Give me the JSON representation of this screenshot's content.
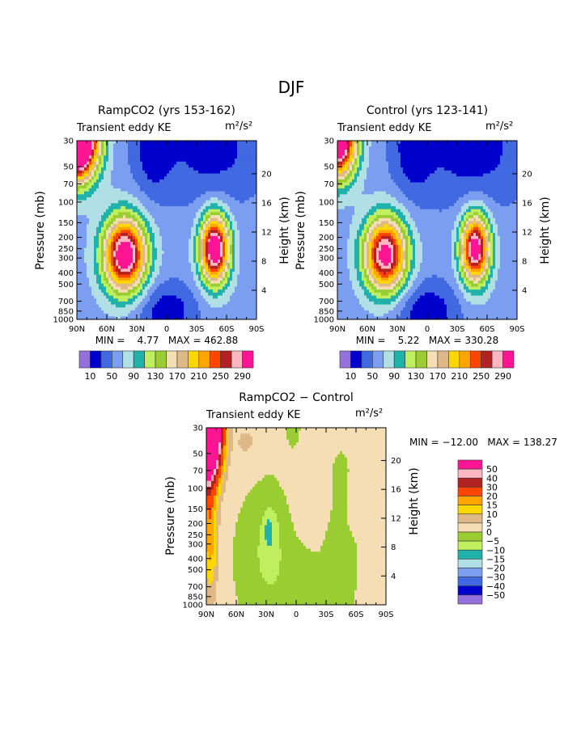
{
  "figure_title": "DJF",
  "colors": {
    "absolute": [
      "#9370DB",
      "#0000CD",
      "#4169E1",
      "#7B9EF0",
      "#B0E0E6",
      "#20B2AA",
      "#BFEF5F",
      "#9ACD32",
      "#F5DEB3",
      "#DEB887",
      "#FFD700",
      "#FFA500",
      "#FF4500",
      "#B22222",
      "#FFB6C1",
      "#FF1493"
    ],
    "difference": [
      "#9370DB",
      "#0000CD",
      "#4169E1",
      "#7B9EF0",
      "#B0E0E6",
      "#20B2AA",
      "#BFEF5F",
      "#9ACD32",
      "#F5DEB3",
      "#DEB887",
      "#FFD700",
      "#FFA500",
      "#FF4500",
      "#B22222",
      "#FFB6C1",
      "#FF1493"
    ]
  },
  "chart_data": [
    {
      "type": "heatmap",
      "title": "RampCO2 (yrs 153-162)",
      "subtitle_left": "Transient eddy KE",
      "units": "m²/s²",
      "ylabel": "Pressure (mb)",
      "ylabel_right": "Height (km)",
      "xticks": [
        "90N",
        "60N",
        "30N",
        "0",
        "30S",
        "60S",
        "90S"
      ],
      "yticks": [
        30,
        50,
        70,
        100,
        150,
        200,
        250,
        300,
        400,
        500,
        700,
        850,
        1000
      ],
      "yticks_right": [
        4,
        8,
        12,
        16,
        20
      ],
      "xlim": [
        90,
        -90
      ],
      "ylim": [
        1000,
        30
      ],
      "minmax": "MIN =    4.77   MAX = 462.88",
      "levels": [
        10,
        30,
        50,
        70,
        90,
        110,
        130,
        150,
        170,
        190,
        210,
        230,
        250,
        270,
        290
      ],
      "level_labels": [
        "10",
        "50",
        "90",
        "130",
        "170",
        "210",
        "250",
        "290"
      ],
      "colorbar": "horizontal",
      "field_model": {
        "base": 62,
        "components": [
          {
            "lat": 42,
            "p": 280,
            "amp": 265,
            "slat": 15,
            "slogp": 0.22
          },
          {
            "lat": -48,
            "p": 250,
            "amp": 275,
            "slat": 10,
            "slogp": 0.2
          },
          {
            "lat": 90,
            "p": 30,
            "amp": 420,
            "slat": 14,
            "slogp": 0.22
          },
          {
            "lat": 0,
            "p": 850,
            "amp": -45,
            "slat": 22,
            "slogp": 0.18
          },
          {
            "lat": -45,
            "p": 35,
            "amp": -40,
            "slat": 40,
            "slogp": 0.35
          },
          {
            "lat": 15,
            "p": 35,
            "amp": -35,
            "slat": 14,
            "slogp": 0.3
          }
        ]
      }
    },
    {
      "type": "heatmap",
      "title": "Control (yrs 123-141)",
      "subtitle_left": "Transient eddy KE",
      "units": "m²/s²",
      "ylabel": "Pressure (mb)",
      "ylabel_right": "Height (km)",
      "xticks": [
        "90N",
        "60N",
        "30N",
        "0",
        "30S",
        "60S",
        "90S"
      ],
      "yticks": [
        30,
        50,
        70,
        100,
        150,
        200,
        250,
        300,
        400,
        500,
        700,
        850,
        1000
      ],
      "yticks_right": [
        4,
        8,
        12,
        16,
        20
      ],
      "xlim": [
        90,
        -90
      ],
      "ylim": [
        1000,
        30
      ],
      "minmax": "MIN =    5.22   MAX = 330.28",
      "levels": [
        10,
        30,
        50,
        70,
        90,
        110,
        130,
        150,
        170,
        190,
        210,
        230,
        250,
        270,
        290
      ],
      "level_labels": [
        "10",
        "50",
        "90",
        "130",
        "170",
        "210",
        "250",
        "290"
      ],
      "colorbar": "horizontal",
      "field_model": {
        "base": 60,
        "components": [
          {
            "lat": 42,
            "p": 280,
            "amp": 250,
            "slat": 15,
            "slogp": 0.22
          },
          {
            "lat": -48,
            "p": 250,
            "amp": 260,
            "slat": 10,
            "slogp": 0.2
          },
          {
            "lat": 90,
            "p": 30,
            "amp": 300,
            "slat": 13,
            "slogp": 0.22
          },
          {
            "lat": 0,
            "p": 850,
            "amp": -45,
            "slat": 22,
            "slogp": 0.18
          },
          {
            "lat": -45,
            "p": 35,
            "amp": -40,
            "slat": 40,
            "slogp": 0.35
          },
          {
            "lat": 15,
            "p": 35,
            "amp": -35,
            "slat": 14,
            "slogp": 0.3
          }
        ]
      }
    },
    {
      "type": "heatmap",
      "title": "RampCO2 − Control",
      "subtitle_left": "Transient eddy KE",
      "units": "m²/s²",
      "ylabel": "Pressure (mb)",
      "ylabel_right": "Height (km)",
      "xticks": [
        "90N",
        "60N",
        "30N",
        "0",
        "30S",
        "60S",
        "90S"
      ],
      "yticks": [
        30,
        50,
        70,
        100,
        150,
        200,
        250,
        300,
        400,
        500,
        700,
        850,
        1000
      ],
      "yticks_right": [
        4,
        8,
        12,
        16,
        20
      ],
      "xlim": [
        90,
        -90
      ],
      "ylim": [
        1000,
        30
      ],
      "minmax": "MIN = −12.00   MAX = 138.27",
      "levels": [
        -50,
        -40,
        -30,
        -20,
        -15,
        -10,
        -5,
        0,
        5,
        10,
        15,
        20,
        30,
        40,
        50
      ],
      "level_labels": [
        "50",
        "40",
        "30",
        "20",
        "15",
        "10",
        "5",
        "0",
        "−5",
        "−10",
        "−15",
        "−20",
        "−30",
        "−40",
        "−50"
      ],
      "colorbar": "vertical",
      "field_model": {
        "base": 2.5,
        "components": [
          {
            "lat": 32,
            "p": 400,
            "amp": -7,
            "slat": 22,
            "slogp": 0.45
          },
          {
            "lat": -45,
            "p": 350,
            "amp": -7,
            "slat": 11,
            "slogp": 0.6
          },
          {
            "lat": -10,
            "p": 700,
            "amp": -6,
            "slat": 15,
            "slogp": 0.2
          },
          {
            "lat": 3,
            "p": 30,
            "amp": -6,
            "slat": 5,
            "slogp": 0.12
          },
          {
            "lat": 25,
            "p": 250,
            "amp": -5,
            "slat": 7,
            "slogp": 0.25
          },
          {
            "lat": 28,
            "p": 230,
            "amp": -6,
            "slat": 3,
            "slogp": 0.08
          },
          {
            "lat": 90,
            "p": 30,
            "amp": 160,
            "slat": 9,
            "slogp": 0.28
          },
          {
            "lat": 86,
            "p": 250,
            "amp": 16,
            "slat": 5,
            "slogp": 0.35
          },
          {
            "lat": -30,
            "p": 130,
            "amp": 4,
            "slat": 4,
            "slogp": 0.12
          },
          {
            "lat": -55,
            "p": 150,
            "amp": 5,
            "slat": 4,
            "slogp": 0.15
          },
          {
            "lat": 50,
            "p": 40,
            "amp": 4,
            "slat": 8,
            "slogp": 0.1
          }
        ]
      }
    }
  ]
}
